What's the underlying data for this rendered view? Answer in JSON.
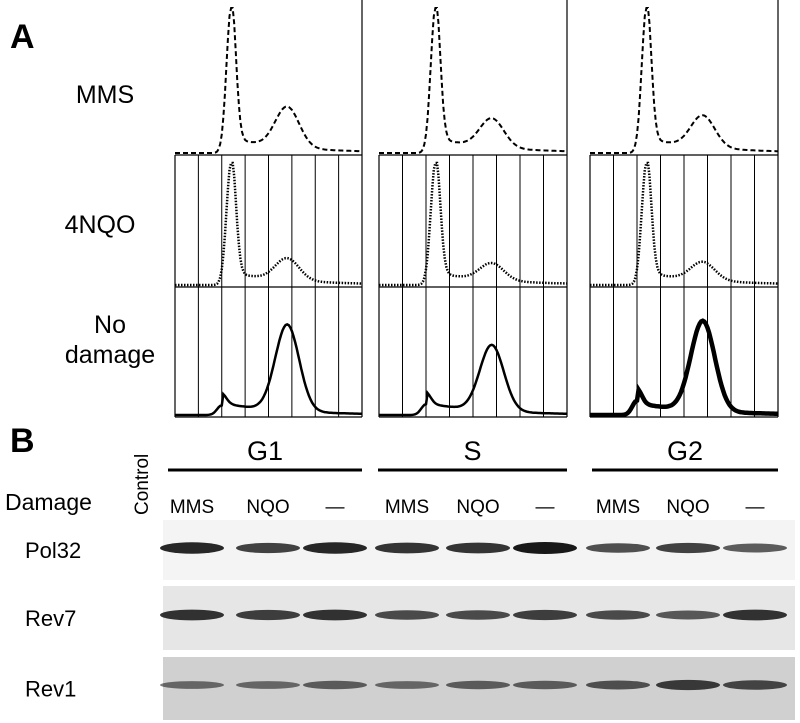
{
  "panel_a": {
    "label": "A",
    "rows": [
      "MMS",
      "4NQO",
      "No damage"
    ]
  },
  "panel_b": {
    "label": "B",
    "control": "Control",
    "damage": "Damage",
    "phases": [
      {
        "name": "G1",
        "lanes": [
          "MMS",
          "NQO",
          "—"
        ]
      },
      {
        "name": "S",
        "lanes": [
          "MMS",
          "NQO",
          "—"
        ]
      },
      {
        "name": "G2",
        "lanes": [
          "MMS",
          "NQO",
          "—"
        ]
      }
    ],
    "blots": [
      "Pol32",
      "Rev7",
      "Rev1"
    ]
  }
}
